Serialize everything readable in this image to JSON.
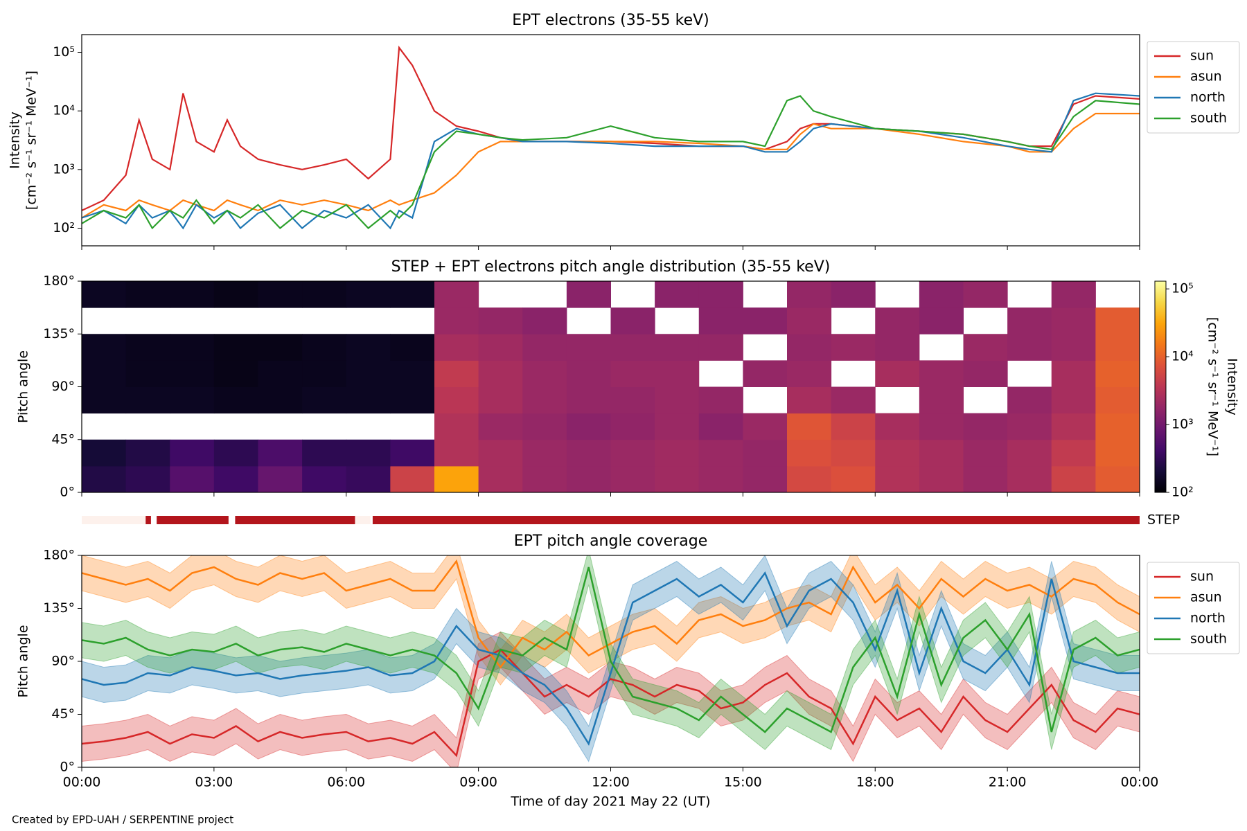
{
  "chart_data": [
    {
      "type": "line",
      "title": "EPT electrons (35-55 keV)",
      "ylabel": [
        "Intensity",
        "[cm⁻² s⁻¹ sr⁻¹ MeV⁻¹]"
      ],
      "log_y": true,
      "legend": "upper right outside",
      "x": [
        0,
        0.5,
        1,
        1.3,
        1.6,
        2,
        2.3,
        2.6,
        3,
        3.3,
        3.6,
        4,
        4.5,
        5,
        5.5,
        6,
        6.5,
        7,
        7.2,
        7.5,
        8,
        8.5,
        9,
        9.5,
        10,
        11,
        12,
        13,
        14,
        15,
        15.5,
        16,
        16.3,
        16.6,
        17,
        18,
        19,
        20,
        21,
        21.5,
        22,
        22.5,
        23,
        24
      ],
      "series": [
        {
          "name": "sun",
          "color": "#d62728",
          "values": [
            200,
            300,
            800,
            7000,
            1500,
            1000,
            20000,
            3000,
            2000,
            7000,
            2500,
            1500,
            1200,
            1000,
            1200,
            1500,
            700,
            1500,
            120000,
            60000,
            10000,
            5500,
            4500,
            3500,
            3000,
            3000,
            3000,
            2800,
            2500,
            2500,
            2200,
            3000,
            5000,
            6000,
            6000,
            5000,
            4500,
            4000,
            3000,
            2500,
            2500,
            13000,
            18000,
            16000
          ]
        },
        {
          "name": "asun",
          "color": "#ff7f0e",
          "values": [
            150,
            250,
            200,
            300,
            250,
            200,
            300,
            250,
            200,
            300,
            250,
            200,
            300,
            250,
            300,
            250,
            200,
            300,
            250,
            300,
            400,
            800,
            2000,
            3000,
            3000,
            3000,
            3000,
            3000,
            2800,
            2500,
            2200,
            2200,
            4000,
            6000,
            5000,
            5000,
            4000,
            3000,
            2500,
            2000,
            2000,
            5000,
            9000,
            9000
          ]
        },
        {
          "name": "north",
          "color": "#1f77b4",
          "values": [
            150,
            200,
            120,
            250,
            150,
            200,
            100,
            250,
            150,
            200,
            100,
            180,
            250,
            100,
            200,
            150,
            250,
            100,
            200,
            150,
            3000,
            5000,
            4000,
            3500,
            3000,
            3000,
            2800,
            2500,
            2500,
            2500,
            2000,
            2000,
            3000,
            5000,
            6000,
            5000,
            4500,
            3500,
            2500,
            2200,
            2000,
            15000,
            20000,
            18000
          ]
        },
        {
          "name": "south",
          "color": "#2ca02c",
          "values": [
            120,
            200,
            150,
            250,
            100,
            200,
            150,
            300,
            120,
            200,
            150,
            250,
            100,
            200,
            150,
            250,
            100,
            200,
            150,
            250,
            2000,
            4500,
            4000,
            3500,
            3200,
            3500,
            5500,
            3500,
            3000,
            3000,
            2500,
            15000,
            18000,
            10000,
            8000,
            5000,
            4500,
            4000,
            3000,
            2500,
            2200,
            8000,
            15000,
            13000
          ]
        }
      ],
      "xlim": [
        0,
        24
      ],
      "xticks": [
        0,
        3,
        6,
        9,
        12,
        15,
        18,
        21,
        24
      ],
      "ylim": [
        50,
        200000
      ],
      "yticks": [
        {
          "value": 100,
          "label": "10²"
        },
        {
          "value": 1000,
          "label": "10³"
        },
        {
          "value": 10000,
          "label": "10⁴"
        },
        {
          "value": 100000,
          "label": "10⁵"
        }
      ]
    },
    {
      "type": "heatmap",
      "title": "STEP + EPT electrons pitch angle distribution (35-55 keV)",
      "ylabel": "Pitch angle",
      "colormap": "inferno",
      "log_color": true,
      "time_bins": [
        0,
        1,
        2,
        3,
        4,
        5,
        6,
        7,
        8,
        9,
        10,
        11,
        12,
        13,
        14,
        15,
        16,
        17,
        18,
        19,
        20,
        21,
        22,
        23,
        24
      ],
      "pitch_bins": [
        0,
        22.5,
        45,
        67.5,
        90,
        112.5,
        135,
        157.5,
        180
      ],
      "values": [
        [
          250,
          300,
          600,
          400,
          800,
          400,
          350,
          5000,
          30000,
          2500,
          2000,
          1800,
          2000,
          2200,
          2000,
          1800,
          6000,
          7000,
          3000,
          2500,
          2000,
          2500,
          5000,
          9000
        ],
        [
          200,
          250,
          400,
          300,
          500,
          300,
          300,
          400,
          3000,
          2500,
          2000,
          1800,
          2000,
          2200,
          2000,
          1800,
          7000,
          6000,
          3000,
          2500,
          2000,
          2500,
          4000,
          10000
        ],
        [
          null,
          null,
          null,
          null,
          null,
          null,
          null,
          null,
          3000,
          2000,
          1800,
          1500,
          1700,
          2000,
          1500,
          2000,
          8000,
          5000,
          2500,
          2000,
          1800,
          2000,
          3000,
          10000
        ],
        [
          150,
          150,
          150,
          140,
          140,
          150,
          150,
          150,
          3500,
          2500,
          2000,
          1800,
          1800,
          2000,
          1800,
          null,
          2500,
          2000,
          null,
          2000,
          null,
          1800,
          2500,
          9000
        ],
        [
          150,
          140,
          140,
          130,
          140,
          140,
          150,
          150,
          4000,
          2500,
          2000,
          1800,
          2000,
          2000,
          null,
          1800,
          2000,
          null,
          2500,
          2000,
          1800,
          null,
          2500,
          10000
        ],
        [
          150,
          140,
          140,
          130,
          130,
          140,
          150,
          140,
          2500,
          2200,
          1800,
          1800,
          1800,
          1800,
          1800,
          null,
          1800,
          2000,
          1800,
          null,
          2000,
          1800,
          2000,
          9000
        ],
        [
          null,
          null,
          null,
          null,
          null,
          null,
          null,
          null,
          2000,
          1800,
          1500,
          null,
          1500,
          null,
          1500,
          1500,
          2000,
          null,
          1800,
          1500,
          null,
          1800,
          2000,
          9000
        ],
        [
          150,
          140,
          140,
          130,
          140,
          140,
          150,
          150,
          2000,
          null,
          null,
          1500,
          null,
          1500,
          1500,
          null,
          1800,
          1500,
          null,
          1500,
          1800,
          null,
          1800,
          null
        ]
      ],
      "clim": [
        100,
        130000
      ],
      "cticks": [
        {
          "value": 100,
          "label": "10²"
        },
        {
          "value": 1000,
          "label": "10³"
        },
        {
          "value": 10000,
          "label": "10⁴"
        },
        {
          "value": 100000,
          "label": "10⁵"
        }
      ],
      "clabel": [
        "Intensity",
        "[cm⁻² s⁻¹ sr⁻¹ MeV⁻¹]"
      ],
      "xlim": [
        0,
        24
      ],
      "xticks": [
        0,
        3,
        6,
        9,
        12,
        15,
        18,
        21,
        24
      ],
      "ylim": [
        0,
        180
      ],
      "yticks": [
        {
          "value": 0,
          "label": "0°"
        },
        {
          "value": 45,
          "label": "45°"
        },
        {
          "value": 90,
          "label": "90°"
        },
        {
          "value": 135,
          "label": "135°"
        },
        {
          "value": 180,
          "label": "180°"
        }
      ]
    },
    {
      "type": "status_bar",
      "label": "STEP",
      "xlim": [
        0,
        24
      ],
      "segments": [
        {
          "start": 0,
          "end": 1.45,
          "color": "#fdf1ec"
        },
        {
          "start": 1.45,
          "end": 1.57,
          "color": "#b3151c"
        },
        {
          "start": 1.7,
          "end": 3.33,
          "color": "#b3151c"
        },
        {
          "start": 3.48,
          "end": 6.2,
          "color": "#b3151c"
        },
        {
          "start": 6.2,
          "end": 6.55,
          "color": "#fdf1ec"
        },
        {
          "start": 6.6,
          "end": 24,
          "color": "#b3151c"
        }
      ]
    },
    {
      "type": "band_line",
      "title": "EPT pitch angle coverage",
      "ylabel": "Pitch angle",
      "xlabel": "Time of day 2021 May 22 (UT)",
      "legend": "upper right outside",
      "x": [
        0,
        0.5,
        1,
        1.5,
        2,
        2.5,
        3,
        3.5,
        4,
        4.5,
        5,
        5.5,
        6,
        6.5,
        7,
        7.5,
        8,
        8.5,
        9,
        9.5,
        10,
        10.5,
        11,
        11.5,
        12,
        12.5,
        13,
        13.5,
        14,
        14.5,
        15,
        15.5,
        16,
        16.5,
        17,
        17.5,
        18,
        18.5,
        19,
        19.5,
        20,
        20.5,
        21,
        21.5,
        22,
        22.5,
        23,
        23.5,
        24
      ],
      "series": [
        {
          "name": "sun",
          "color": "#d62728",
          "spread": 15,
          "values": [
            20,
            22,
            25,
            30,
            20,
            28,
            25,
            35,
            22,
            30,
            25,
            28,
            30,
            22,
            25,
            20,
            30,
            10,
            90,
            100,
            80,
            60,
            70,
            60,
            75,
            70,
            60,
            70,
            65,
            50,
            55,
            70,
            80,
            60,
            50,
            20,
            60,
            40,
            50,
            30,
            60,
            40,
            30,
            50,
            70,
            40,
            30,
            50,
            45
          ]
        },
        {
          "name": "asun",
          "color": "#ff7f0e",
          "spread": 15,
          "values": [
            165,
            160,
            155,
            160,
            150,
            165,
            170,
            160,
            155,
            165,
            160,
            165,
            150,
            155,
            160,
            150,
            150,
            175,
            110,
            85,
            110,
            100,
            115,
            95,
            105,
            115,
            120,
            105,
            125,
            130,
            120,
            125,
            135,
            140,
            130,
            170,
            140,
            155,
            135,
            160,
            145,
            160,
            150,
            155,
            145,
            160,
            155,
            140,
            130
          ]
        },
        {
          "name": "north",
          "color": "#1f77b4",
          "spread": 15,
          "values": [
            75,
            70,
            72,
            80,
            78,
            85,
            82,
            78,
            80,
            75,
            78,
            80,
            82,
            85,
            78,
            80,
            90,
            120,
            100,
            95,
            80,
            70,
            50,
            20,
            80,
            140,
            150,
            160,
            145,
            155,
            140,
            165,
            120,
            150,
            160,
            140,
            100,
            150,
            80,
            135,
            90,
            80,
            100,
            70,
            160,
            90,
            85,
            80,
            80
          ]
        },
        {
          "name": "south",
          "color": "#2ca02c",
          "spread": 15,
          "values": [
            108,
            105,
            110,
            100,
            95,
            100,
            98,
            105,
            95,
            100,
            102,
            98,
            105,
            100,
            95,
            100,
            95,
            80,
            50,
            100,
            95,
            110,
            100,
            170,
            90,
            60,
            55,
            50,
            40,
            60,
            45,
            30,
            50,
            40,
            30,
            85,
            110,
            60,
            130,
            70,
            110,
            125,
            100,
            130,
            30,
            100,
            110,
            95,
            100
          ]
        }
      ],
      "xlim": [
        0,
        24
      ],
      "xticks": [
        {
          "value": 0,
          "label": "00:00"
        },
        {
          "value": 3,
          "label": "03:00"
        },
        {
          "value": 6,
          "label": "06:00"
        },
        {
          "value": 9,
          "label": "09:00"
        },
        {
          "value": 12,
          "label": "12:00"
        },
        {
          "value": 15,
          "label": "15:00"
        },
        {
          "value": 18,
          "label": "18:00"
        },
        {
          "value": 21,
          "label": "21:00"
        },
        {
          "value": 24,
          "label": "00:00"
        }
      ],
      "ylim": [
        0,
        180
      ],
      "yticks": [
        {
          "value": 0,
          "label": "0°"
        },
        {
          "value": 45,
          "label": "45°"
        },
        {
          "value": 90,
          "label": "90°"
        },
        {
          "value": 135,
          "label": "135°"
        },
        {
          "value": 180,
          "label": "180°"
        }
      ]
    }
  ],
  "footer": "Created by EPD-UAH / SERPENTINE project"
}
